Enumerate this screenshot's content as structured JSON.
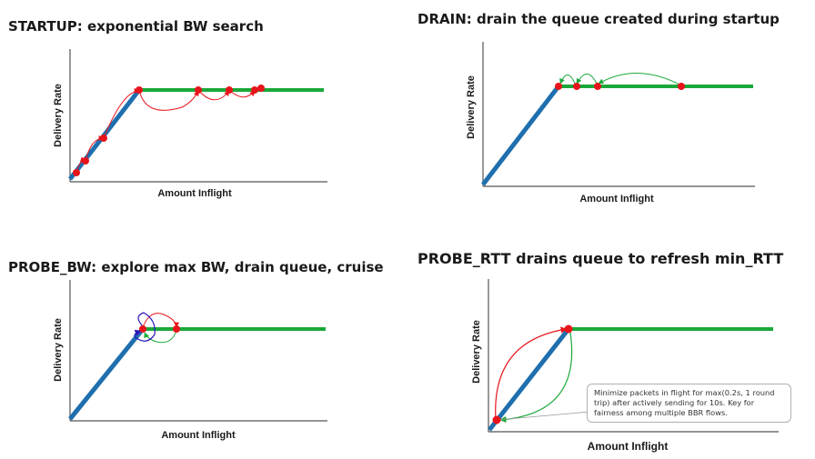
{
  "colors": {
    "axis": "#555555",
    "link": "#1f6fae",
    "bdp": "#1aa83a",
    "point": "#e8141b",
    "arc_red": "#e8141b",
    "arc_green": "#1aa83a",
    "arc_blue": "#2a16b8"
  },
  "panels": [
    {
      "id": "startup",
      "title": "STARTUP: exponential BW search",
      "ylabel": "Delivery Rate",
      "xlabel": "Amount Inflight"
    },
    {
      "id": "drain",
      "title": "DRAIN: drain the queue created during startup",
      "ylabel": "Delivery Rate",
      "xlabel": "Amount Inflight"
    },
    {
      "id": "probe_bw",
      "title": "PROBE_BW: explore max BW, drain queue, cruise",
      "ylabel": "Delivery Rate",
      "xlabel": "Amount Inflight"
    },
    {
      "id": "probe_rtt",
      "title": "PROBE_RTT drains queue to refresh min_RTT",
      "ylabel": "Delivery Rate",
      "xlabel": "Amount Inflight"
    }
  ],
  "note": "Minimize packets in flight for max(0.2s, 1 round trip) after actively sending for 10s. Key for fairness among multiple BBR flows."
}
